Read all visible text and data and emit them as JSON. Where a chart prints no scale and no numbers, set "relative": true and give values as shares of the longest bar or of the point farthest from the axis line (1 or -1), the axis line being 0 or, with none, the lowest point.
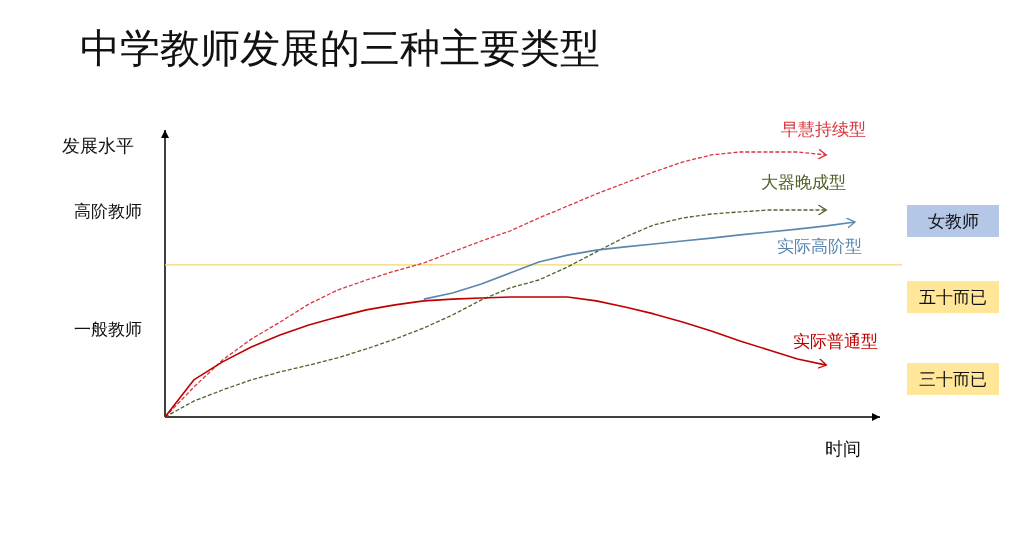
{
  "chart_data": {
    "type": "line",
    "title": "中学教师发展的三种主要类型",
    "ylabel": "发展水平",
    "xlabel": "时间",
    "relative": true,
    "categories": [
      null,
      null,
      null,
      null,
      null,
      null,
      null,
      null,
      null,
      null,
      null,
      null,
      null,
      null,
      null,
      null,
      null,
      null,
      null,
      null,
      null,
      null,
      null,
      null,
      null
    ],
    "series": [
      {
        "name": "早慧持续型",
        "color": "#d9363e",
        "line_style": "dashed",
        "values": [
          0,
          0.113,
          0.215,
          0.294,
          0.358,
          0.426,
          0.479,
          0.517,
          0.551,
          0.581,
          0.623,
          0.664,
          0.702,
          0.751,
          0.796,
          0.842,
          0.883,
          0.925,
          0.962,
          0.989,
          1,
          1,
          1,
          0.989,
          null
        ]
      },
      {
        "name": "大器晚成型",
        "color": "#4f6228",
        "line_style": "dashed",
        "values": [
          0,
          0.06,
          0.102,
          0.14,
          0.17,
          0.196,
          0.223,
          0.257,
          0.294,
          0.336,
          0.385,
          0.442,
          0.487,
          0.517,
          0.566,
          0.623,
          0.679,
          0.725,
          0.751,
          0.766,
          0.774,
          0.781,
          0.781,
          0.781,
          null
        ]
      },
      {
        "name": "实际高阶型",
        "color": "#5b86b0",
        "line_style": "solid",
        "values": [
          null,
          null,
          null,
          null,
          null,
          null,
          null,
          null,
          null,
          0.445,
          0.468,
          0.502,
          0.543,
          0.585,
          0.611,
          0.63,
          0.642,
          0.653,
          0.664,
          0.675,
          0.687,
          0.698,
          0.709,
          0.721,
          0.736
        ]
      },
      {
        "name": "实际普通型",
        "color": "#c00000",
        "line_style": "solid",
        "values": [
          0,
          0.14,
          0.208,
          0.264,
          0.309,
          0.347,
          0.377,
          0.404,
          0.423,
          0.438,
          0.445,
          0.449,
          0.453,
          0.453,
          0.453,
          0.438,
          0.415,
          0.389,
          0.358,
          0.325,
          0.287,
          0.253,
          0.219,
          0.196,
          null
        ]
      }
    ],
    "ref_lines": [
      {
        "axis": "y",
        "value": 0.574,
        "color": "#f5d76e"
      }
    ],
    "annotations": [
      "高阶教师",
      "一般教师",
      "女教师",
      "五十而已",
      "三十而已"
    ]
  }
}
